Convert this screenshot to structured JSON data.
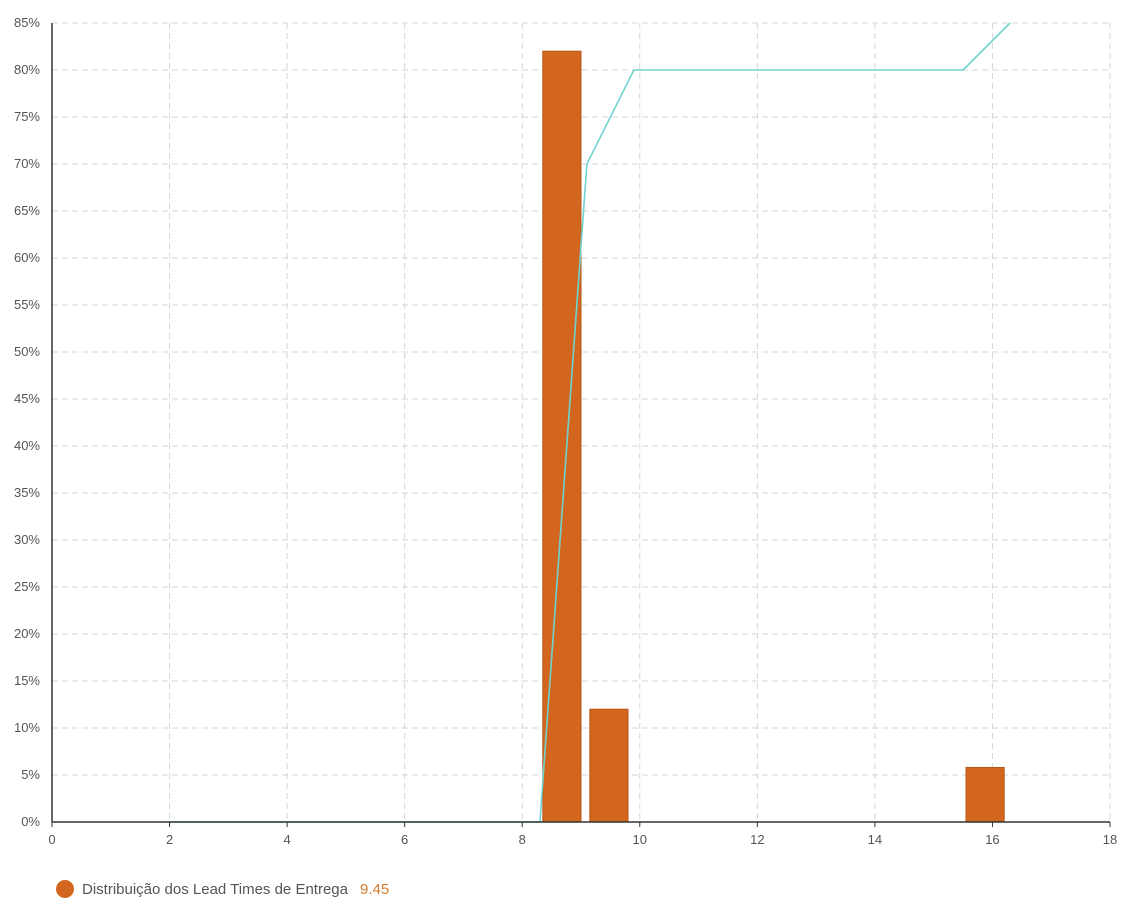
{
  "colors": {
    "bar": "#d2661f",
    "bar_stroke": "#b8571a",
    "cumulative_line": "#6fd3d1",
    "legend_value": "#d47c2e"
  },
  "legend": {
    "label": "Distribuição dos Lead Times de Entrega",
    "value": "9.45",
    "icon": "circle-swatch"
  },
  "chart_data": {
    "type": "bar",
    "title": "",
    "xlabel": "",
    "ylabel": "",
    "xlim": [
      0,
      18
    ],
    "ylim": [
      0,
      85
    ],
    "x_ticks": [
      0,
      2,
      4,
      6,
      8,
      10,
      12,
      14,
      16,
      18
    ],
    "y_ticks": [
      0,
      5,
      10,
      15,
      20,
      25,
      30,
      35,
      40,
      45,
      50,
      55,
      60,
      65,
      70,
      75,
      80,
      85
    ],
    "y_tick_suffix": "%",
    "grid": true,
    "legend_position": "bottom-left",
    "series": [
      {
        "name": "Distribuição dos Lead Times de Entrega",
        "type": "bar",
        "bars": [
          {
            "x_start": 8.35,
            "x_end": 9.0,
            "value": 82
          },
          {
            "x_start": 9.15,
            "x_end": 9.8,
            "value": 12
          },
          {
            "x_start": 15.55,
            "x_end": 16.2,
            "value": 5.8
          }
        ]
      },
      {
        "type": "line",
        "points": [
          {
            "x": 2.0,
            "y": 0
          },
          {
            "x": 8.3,
            "y": 0
          },
          {
            "x": 9.1,
            "y": 70
          },
          {
            "x": 9.9,
            "y": 80
          },
          {
            "x": 15.5,
            "y": 80
          },
          {
            "x": 16.3,
            "y": 85
          }
        ]
      }
    ]
  }
}
